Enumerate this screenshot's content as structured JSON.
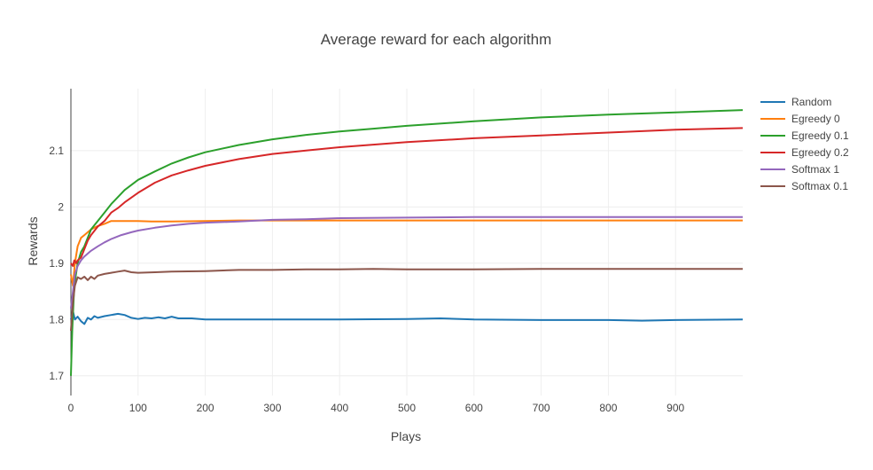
{
  "chart_data": {
    "type": "line",
    "title": "Average reward for each algorithm",
    "xlabel": "Plays",
    "ylabel": "Rewards",
    "xlim": [
      0,
      1000
    ],
    "ylim": [
      1.665,
      2.21
    ],
    "xticks": [
      0,
      100,
      200,
      300,
      400,
      500,
      600,
      700,
      800,
      900
    ],
    "xtick_labels": [
      "0",
      "100",
      "200",
      "300",
      "400",
      "500",
      "600",
      "700",
      "800",
      "900"
    ],
    "yticks": [
      1.7,
      1.8,
      1.9,
      2.0,
      2.1
    ],
    "ytick_labels": [
      "1.7",
      "1.8",
      "1.9",
      "2",
      "2.1"
    ],
    "grid": true,
    "legend_position": "top-right",
    "series": [
      {
        "name": "Random",
        "color": "#1f77b4",
        "x": [
          0,
          3,
          6,
          10,
          15,
          20,
          25,
          30,
          35,
          40,
          50,
          60,
          70,
          80,
          90,
          100,
          110,
          120,
          130,
          140,
          150,
          160,
          180,
          200,
          250,
          300,
          400,
          500,
          550,
          600,
          700,
          800,
          850,
          900,
          1000
        ],
        "y": [
          1.8,
          1.815,
          1.8,
          1.805,
          1.797,
          1.792,
          1.803,
          1.8,
          1.806,
          1.803,
          1.806,
          1.808,
          1.81,
          1.808,
          1.803,
          1.801,
          1.803,
          1.802,
          1.804,
          1.802,
          1.805,
          1.802,
          1.802,
          1.8,
          1.8,
          1.8,
          1.8,
          1.801,
          1.802,
          1.8,
          1.799,
          1.799,
          1.798,
          1.799,
          1.8
        ]
      },
      {
        "name": "Egreedy 0",
        "color": "#ff7f0e",
        "x": [
          0,
          3,
          6,
          10,
          15,
          20,
          25,
          30,
          40,
          50,
          60,
          80,
          100,
          120,
          150,
          200,
          250,
          300,
          350,
          400,
          500,
          600,
          700,
          800,
          900,
          1000
        ],
        "y": [
          1.88,
          1.86,
          1.9,
          1.93,
          1.945,
          1.95,
          1.955,
          1.96,
          1.966,
          1.97,
          1.975,
          1.975,
          1.975,
          1.974,
          1.974,
          1.975,
          1.976,
          1.976,
          1.976,
          1.976,
          1.976,
          1.976,
          1.976,
          1.976,
          1.976,
          1.976
        ]
      },
      {
        "name": "Egreedy 0.1",
        "color": "#2ca02c",
        "x": [
          0,
          2,
          5,
          10,
          15,
          20,
          30,
          40,
          50,
          60,
          80,
          100,
          125,
          150,
          175,
          200,
          250,
          300,
          350,
          400,
          450,
          500,
          600,
          700,
          800,
          900,
          1000
        ],
        "y": [
          1.7,
          1.78,
          1.86,
          1.9,
          1.92,
          1.93,
          1.96,
          1.975,
          1.99,
          2.005,
          2.03,
          2.048,
          2.063,
          2.077,
          2.088,
          2.097,
          2.11,
          2.12,
          2.128,
          2.134,
          2.139,
          2.144,
          2.152,
          2.159,
          2.164,
          2.168,
          2.172
        ]
      },
      {
        "name": "Egreedy 0.2",
        "color": "#d62728",
        "x": [
          0,
          3,
          5,
          8,
          10,
          15,
          20,
          25,
          30,
          40,
          50,
          60,
          70,
          80,
          100,
          125,
          150,
          175,
          200,
          250,
          300,
          350,
          400,
          500,
          600,
          700,
          800,
          900,
          1000
        ],
        "y": [
          1.9,
          1.895,
          1.905,
          1.9,
          1.905,
          1.91,
          1.925,
          1.94,
          1.95,
          1.965,
          1.975,
          1.99,
          1.998,
          2.008,
          2.025,
          2.043,
          2.056,
          2.065,
          2.073,
          2.085,
          2.094,
          2.1,
          2.106,
          2.115,
          2.122,
          2.127,
          2.132,
          2.137,
          2.14
        ]
      },
      {
        "name": "Softmax 1",
        "color": "#9467bd",
        "x": [
          0,
          3,
          6,
          10,
          15,
          20,
          30,
          40,
          50,
          60,
          75,
          90,
          100,
          125,
          150,
          175,
          200,
          250,
          300,
          350,
          400,
          500,
          600,
          700,
          800,
          900,
          1000
        ],
        "y": [
          1.82,
          1.85,
          1.88,
          1.895,
          1.905,
          1.912,
          1.922,
          1.93,
          1.937,
          1.943,
          1.95,
          1.955,
          1.958,
          1.963,
          1.967,
          1.97,
          1.972,
          1.974,
          1.977,
          1.978,
          1.98,
          1.981,
          1.982,
          1.982,
          1.982,
          1.982,
          1.982
        ]
      },
      {
        "name": "Softmax 0.1",
        "color": "#8c564b",
        "x": [
          0,
          3,
          6,
          10,
          15,
          20,
          25,
          30,
          35,
          40,
          50,
          60,
          70,
          80,
          90,
          100,
          125,
          150,
          200,
          250,
          300,
          350,
          400,
          450,
          500,
          600,
          700,
          800,
          900,
          1000
        ],
        "y": [
          1.78,
          1.83,
          1.86,
          1.875,
          1.872,
          1.876,
          1.87,
          1.876,
          1.872,
          1.878,
          1.881,
          1.883,
          1.885,
          1.887,
          1.884,
          1.883,
          1.884,
          1.885,
          1.886,
          1.888,
          1.888,
          1.889,
          1.889,
          1.89,
          1.889,
          1.889,
          1.89,
          1.89,
          1.89,
          1.89
        ]
      }
    ]
  }
}
